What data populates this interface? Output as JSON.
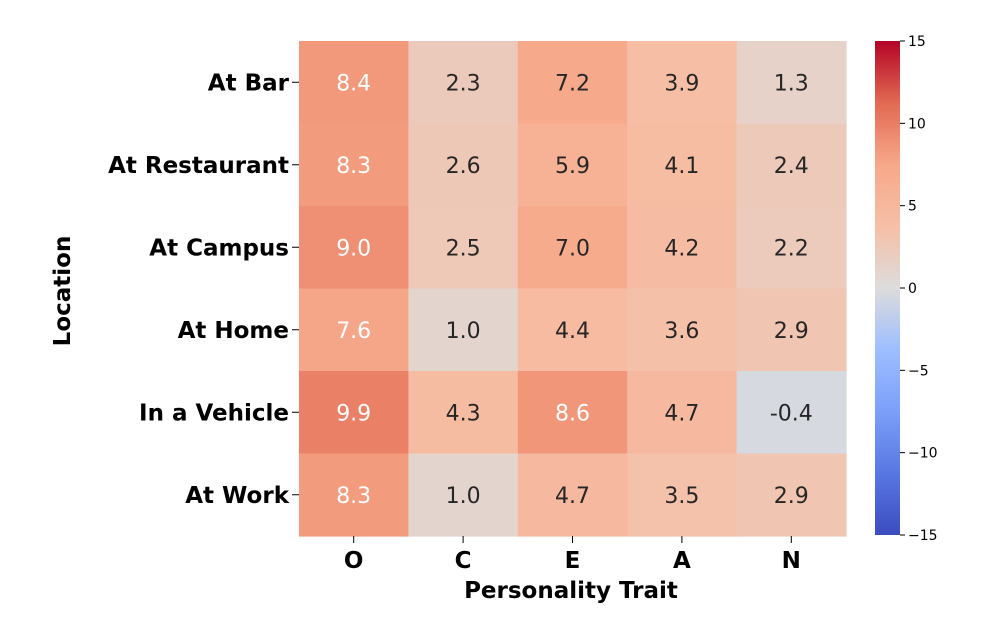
{
  "chart_data": {
    "type": "heatmap",
    "title": "",
    "xlabel": "Personality Trait",
    "ylabel": "Location",
    "x_categories": [
      "O",
      "C",
      "E",
      "A",
      "N"
    ],
    "y_categories": [
      "At Bar",
      "At Restaurant",
      "At Campus",
      "At Home",
      "In a Vehicle",
      "At Work"
    ],
    "values": [
      [
        8.4,
        2.3,
        7.2,
        3.9,
        1.3
      ],
      [
        8.3,
        2.6,
        5.9,
        4.1,
        2.4
      ],
      [
        9.0,
        2.5,
        7.0,
        4.2,
        2.2
      ],
      [
        7.6,
        1.0,
        4.4,
        3.6,
        2.9
      ],
      [
        9.9,
        4.3,
        8.6,
        4.7,
        -0.4
      ],
      [
        8.3,
        1.0,
        4.7,
        3.5,
        2.9
      ]
    ],
    "value_labels": [
      [
        "8.4",
        "2.3",
        "7.2",
        "3.9",
        "1.3"
      ],
      [
        "8.3",
        "2.6",
        "5.9",
        "4.1",
        "2.4"
      ],
      [
        "9.0",
        "2.5",
        "7.0",
        "4.2",
        "2.2"
      ],
      [
        "7.6",
        "1.0",
        "4.4",
        "3.6",
        "2.9"
      ],
      [
        "9.9",
        "4.3",
        "8.6",
        "4.7",
        "-0.4"
      ],
      [
        "8.3",
        "1.0",
        "4.7",
        "3.5",
        "2.9"
      ]
    ],
    "colorbar": {
      "range": [
        -15,
        15
      ],
      "ticks": [
        15,
        10,
        5,
        0,
        -5,
        -10,
        -15
      ],
      "tick_labels": [
        "15",
        "10",
        "5",
        "0",
        "−5",
        "−10",
        "−15"
      ],
      "colormap": "coolwarm"
    }
  }
}
